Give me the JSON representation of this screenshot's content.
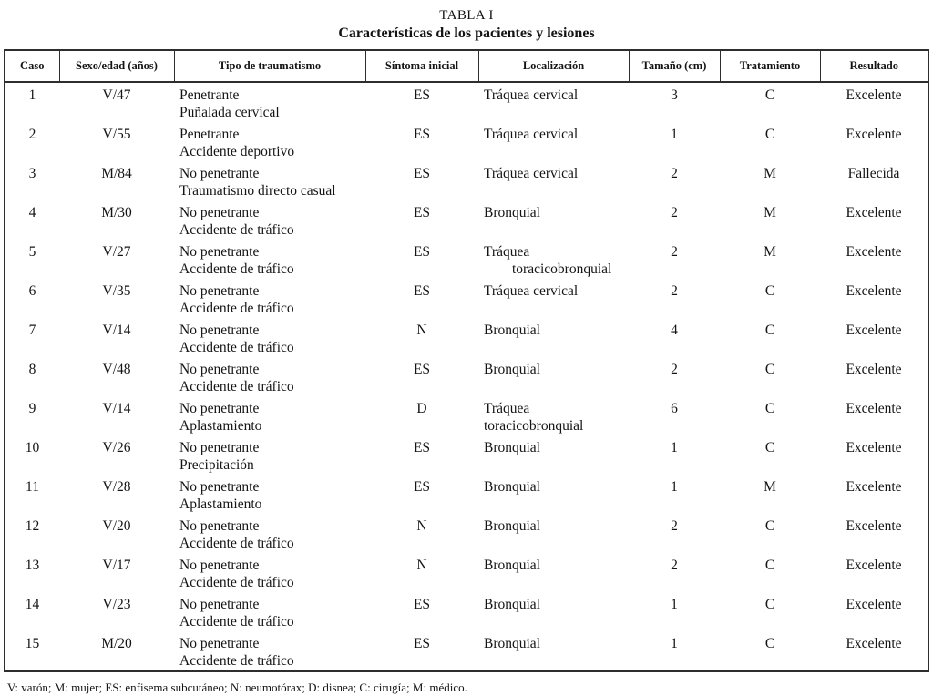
{
  "title": "TABLA I",
  "subtitle": "Características de los pacientes y lesiones",
  "table": {
    "columns": [
      "Caso",
      "Sexo/edad (años)",
      "Tipo de traumatismo",
      "Síntoma inicial",
      "Localización",
      "Tamaño (cm)",
      "Tratamiento",
      "Resultado"
    ],
    "rows": [
      {
        "caso": "1",
        "sexo_edad": "V/47",
        "tipo": [
          "Penetrante",
          "Puñalada cervical"
        ],
        "sintoma": "ES",
        "localizacion": [
          "Tráquea cervical"
        ],
        "tamano": "3",
        "tratamiento": "C",
        "resultado": "Excelente"
      },
      {
        "caso": "2",
        "sexo_edad": "V/55",
        "tipo": [
          "Penetrante",
          "Accidente deportivo"
        ],
        "sintoma": "ES",
        "localizacion": [
          "Tráquea cervical"
        ],
        "tamano": "1",
        "tratamiento": "C",
        "resultado": "Excelente"
      },
      {
        "caso": "3",
        "sexo_edad": "M/84",
        "tipo": [
          "No penetrante",
          "Traumatismo directo casual"
        ],
        "sintoma": "ES",
        "localizacion": [
          "Tráquea cervical"
        ],
        "tamano": "2",
        "tratamiento": "M",
        "resultado": "Fallecida"
      },
      {
        "caso": "4",
        "sexo_edad": "M/30",
        "tipo": [
          "No penetrante",
          "Accidente de tráfico"
        ],
        "sintoma": "ES",
        "localizacion": [
          "Bronquial"
        ],
        "tamano": "2",
        "tratamiento": "M",
        "resultado": "Excelente"
      },
      {
        "caso": "5",
        "sexo_edad": "V/27",
        "tipo": [
          "No penetrante",
          "Accidente de tráfico"
        ],
        "sintoma": "ES",
        "localizacion": [
          "Tráquea",
          "        toracicobronquial"
        ],
        "tamano": "2",
        "tratamiento": "M",
        "resultado": "Excelente"
      },
      {
        "caso": "6",
        "sexo_edad": "V/35",
        "tipo": [
          "No penetrante",
          "Accidente de tráfico"
        ],
        "sintoma": "ES",
        "localizacion": [
          "Tráquea cervical"
        ],
        "tamano": "2",
        "tratamiento": "C",
        "resultado": "Excelente"
      },
      {
        "caso": "7",
        "sexo_edad": "V/14",
        "tipo": [
          "No penetrante",
          "Accidente de tráfico"
        ],
        "sintoma": "N",
        "localizacion": [
          "Bronquial"
        ],
        "tamano": "4",
        "tratamiento": "C",
        "resultado": "Excelente"
      },
      {
        "caso": "8",
        "sexo_edad": "V/48",
        "tipo": [
          "No penetrante",
          "Accidente de tráfico"
        ],
        "sintoma": "ES",
        "localizacion": [
          "Bronquial"
        ],
        "tamano": "2",
        "tratamiento": "C",
        "resultado": "Excelente"
      },
      {
        "caso": "9",
        "sexo_edad": "V/14",
        "tipo": [
          "No penetrante",
          "Aplastamiento"
        ],
        "sintoma": "D",
        "localizacion": [
          "Tráquea",
          "toracicobronquial"
        ],
        "tamano": "6",
        "tratamiento": "C",
        "resultado": "Excelente"
      },
      {
        "caso": "10",
        "sexo_edad": "V/26",
        "tipo": [
          "No penetrante",
          "Precipitación"
        ],
        "sintoma": "ES",
        "localizacion": [
          "Bronquial"
        ],
        "tamano": "1",
        "tratamiento": "C",
        "resultado": "Excelente"
      },
      {
        "caso": "11",
        "sexo_edad": "V/28",
        "tipo": [
          "No penetrante",
          "Aplastamiento"
        ],
        "sintoma": "ES",
        "localizacion": [
          "Bronquial"
        ],
        "tamano": "1",
        "tratamiento": "M",
        "resultado": "Excelente"
      },
      {
        "caso": "12",
        "sexo_edad": "V/20",
        "tipo": [
          "No penetrante",
          "Accidente de tráfico"
        ],
        "sintoma": "N",
        "localizacion": [
          "Bronquial"
        ],
        "tamano": "2",
        "tratamiento": "C",
        "resultado": "Excelente"
      },
      {
        "caso": "13",
        "sexo_edad": "V/17",
        "tipo": [
          "No penetrante",
          "Accidente de tráfico"
        ],
        "sintoma": "N",
        "localizacion": [
          "Bronquial"
        ],
        "tamano": "2",
        "tratamiento": "C",
        "resultado": "Excelente"
      },
      {
        "caso": "14",
        "sexo_edad": "V/23",
        "tipo": [
          "No penetrante",
          "Accidente de tráfico"
        ],
        "sintoma": "ES",
        "localizacion": [
          "Bronquial"
        ],
        "tamano": "1",
        "tratamiento": "C",
        "resultado": "Excelente"
      },
      {
        "caso": "15",
        "sexo_edad": "M/20",
        "tipo": [
          "No penetrante",
          "Accidente de tráfico"
        ],
        "sintoma": "ES",
        "localizacion": [
          "Bronquial"
        ],
        "tamano": "1",
        "tratamiento": "C",
        "resultado": "Excelente"
      }
    ]
  },
  "footnote": "V: varón; M: mujer; ES: enfisema subcutáneo; N: neumotórax; D: disnea; C: cirugía; M: médico."
}
